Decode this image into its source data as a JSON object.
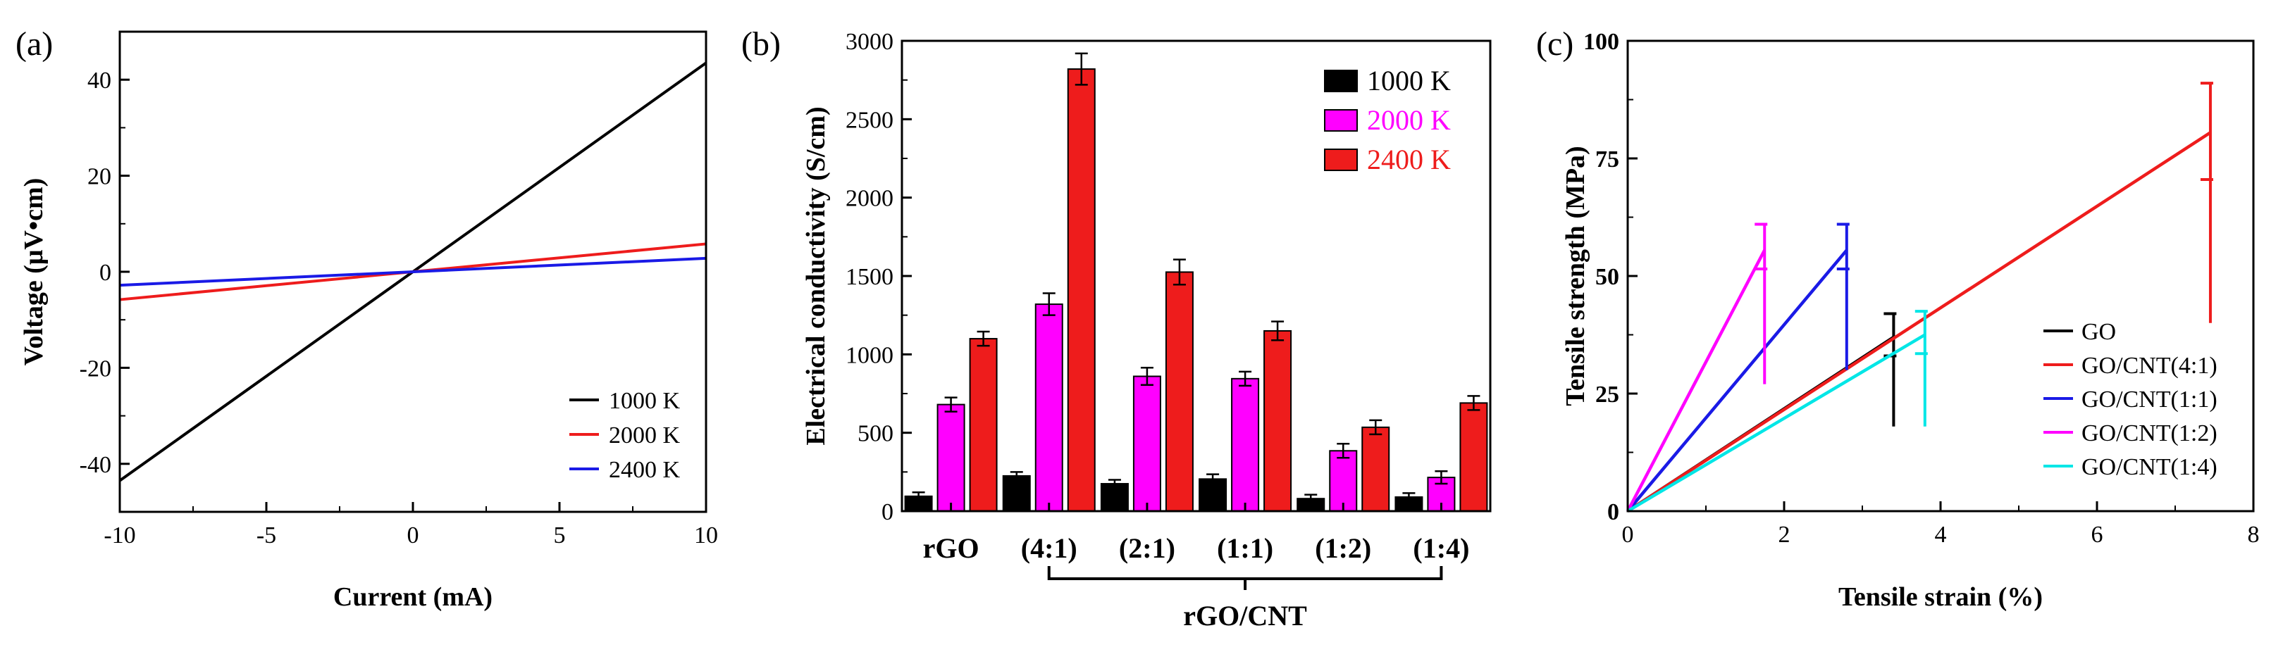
{
  "figure": {
    "panels": [
      "(a)",
      "(b)",
      "(c)"
    ]
  },
  "chart_data": [
    {
      "id": "a",
      "panel_label": "(a)",
      "type": "line",
      "title": "",
      "xlabel": "Current (mA)",
      "ylabel": "Voltage (μV•cm)",
      "xlim": [
        -10,
        10
      ],
      "ylim": [
        -50,
        50
      ],
      "xticks": [
        -10,
        -5,
        0,
        5,
        10
      ],
      "yticks": [
        -40,
        -20,
        0,
        20,
        40
      ],
      "grid": false,
      "legend_position": "bottom-right",
      "series": [
        {
          "name": "1000 K",
          "color": "#000000",
          "x": [
            -10,
            10
          ],
          "y": [
            -43.5,
            43.5
          ]
        },
        {
          "name": "2000 K",
          "color": "#ee1c1c",
          "x": [
            -10,
            10
          ],
          "y": [
            -5.8,
            5.8
          ]
        },
        {
          "name": "2400 K",
          "color": "#1a1ae6",
          "x": [
            -10,
            10
          ],
          "y": [
            -2.8,
            2.8
          ]
        }
      ]
    },
    {
      "id": "b",
      "panel_label": "(b)",
      "type": "bar",
      "title": "",
      "xlabel": "rGO/CNT",
      "ylabel": "Electrical conductivity (S/cm)",
      "ylim": [
        0,
        3000
      ],
      "yticks": [
        0,
        500,
        1000,
        1500,
        2000,
        2500,
        3000
      ],
      "grid": false,
      "legend_position": "top-right",
      "categories": [
        "rGO",
        "(4:1)",
        "(2:1)",
        "(1:1)",
        "(1:2)",
        "(1:4)"
      ],
      "bracket_label": "rGO/CNT",
      "series": [
        {
          "name": "1000 K",
          "color": "#000000",
          "values": [
            95,
            225,
            175,
            205,
            80,
            90
          ],
          "errors": [
            25,
            25,
            25,
            30,
            25,
            25
          ]
        },
        {
          "name": "2000 K",
          "color": "#ff00ff",
          "values": [
            680,
            1320,
            860,
            845,
            385,
            215
          ],
          "errors": [
            45,
            70,
            55,
            45,
            45,
            40
          ]
        },
        {
          "name": "2400 K",
          "color": "#ee1c1c",
          "values": [
            1100,
            2820,
            1525,
            1150,
            535,
            690
          ],
          "errors": [
            45,
            100,
            80,
            60,
            45,
            45
          ]
        }
      ]
    },
    {
      "id": "c",
      "panel_label": "(c)",
      "type": "line",
      "title": "",
      "xlabel": "Tensile strain (%)",
      "ylabel": "Tensile strength (MPa)",
      "xlim": [
        0,
        8
      ],
      "ylim": [
        0,
        100
      ],
      "xticks": [
        0,
        2,
        4,
        6,
        8
      ],
      "yticks": [
        0,
        25,
        50,
        75,
        100
      ],
      "grid": false,
      "legend_position": "bottom-right",
      "series": [
        {
          "name": "GO",
          "color": "#000000",
          "x": [
            0,
            3.4
          ],
          "y": [
            0,
            37
          ],
          "error_x": 3.4,
          "error_y": 37,
          "error_low": 18,
          "error_high": 42,
          "error_cap_mid": 33
        },
        {
          "name": "GO/CNT(4:1)",
          "color": "#ee1c1c",
          "x": [
            0,
            7.45
          ],
          "y": [
            0,
            80.5
          ],
          "error_x": 7.45,
          "error_y": 80.5,
          "error_low": 40,
          "error_high": 91,
          "error_cap_mid": 70.5
        },
        {
          "name": "GO/CNT(1:1)",
          "color": "#1a1ae6",
          "x": [
            0,
            2.8
          ],
          "y": [
            0,
            55.5
          ],
          "error_x": 2.8,
          "error_y": 55.5,
          "error_low": 30,
          "error_high": 61,
          "error_cap_mid": 51.5
        },
        {
          "name": "GO/CNT(1:2)",
          "color": "#ff00ff",
          "x": [
            0,
            1.75
          ],
          "y": [
            0,
            55.5
          ],
          "error_x": 1.75,
          "error_y": 55.5,
          "error_low": 27,
          "error_high": 61,
          "error_cap_mid": 51.5
        },
        {
          "name": "GO/CNT(1:4)",
          "color": "#00e6e6",
          "x": [
            0,
            3.8
          ],
          "y": [
            0,
            37.5
          ],
          "error_x": 3.8,
          "error_y": 37.5,
          "error_low": 18,
          "error_high": 42.5,
          "error_cap_mid": 33.5
        }
      ]
    }
  ]
}
